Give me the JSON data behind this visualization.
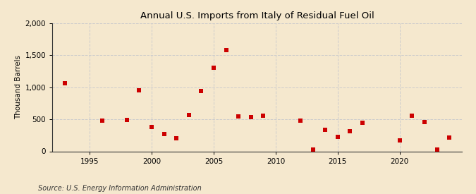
{
  "title": "Annual U.S. Imports from Italy of Residual Fuel Oil",
  "ylabel": "Thousand Barrels",
  "source": "Source: U.S. Energy Information Administration",
  "background_color": "#f5e8ce",
  "plot_background_color": "#f5e8ce",
  "marker_color": "#cc0000",
  "marker": "s",
  "marker_size": 4,
  "xlim": [
    1992,
    2025
  ],
  "ylim": [
    0,
    2000
  ],
  "yticks": [
    0,
    500,
    1000,
    1500,
    2000
  ],
  "xticks": [
    1995,
    2000,
    2005,
    2010,
    2015,
    2020
  ],
  "grid_color": "#cccccc",
  "years": [
    1993,
    1996,
    1998,
    1999,
    2000,
    2001,
    2002,
    2003,
    2004,
    2005,
    2006,
    2007,
    2008,
    2009,
    2012,
    2013,
    2014,
    2015,
    2016,
    2017,
    2020,
    2021,
    2022,
    2023,
    2024
  ],
  "values": [
    1060,
    480,
    490,
    950,
    380,
    270,
    200,
    570,
    940,
    1310,
    1580,
    540,
    530,
    560,
    480,
    30,
    340,
    230,
    310,
    450,
    170,
    560,
    460,
    25,
    220
  ]
}
